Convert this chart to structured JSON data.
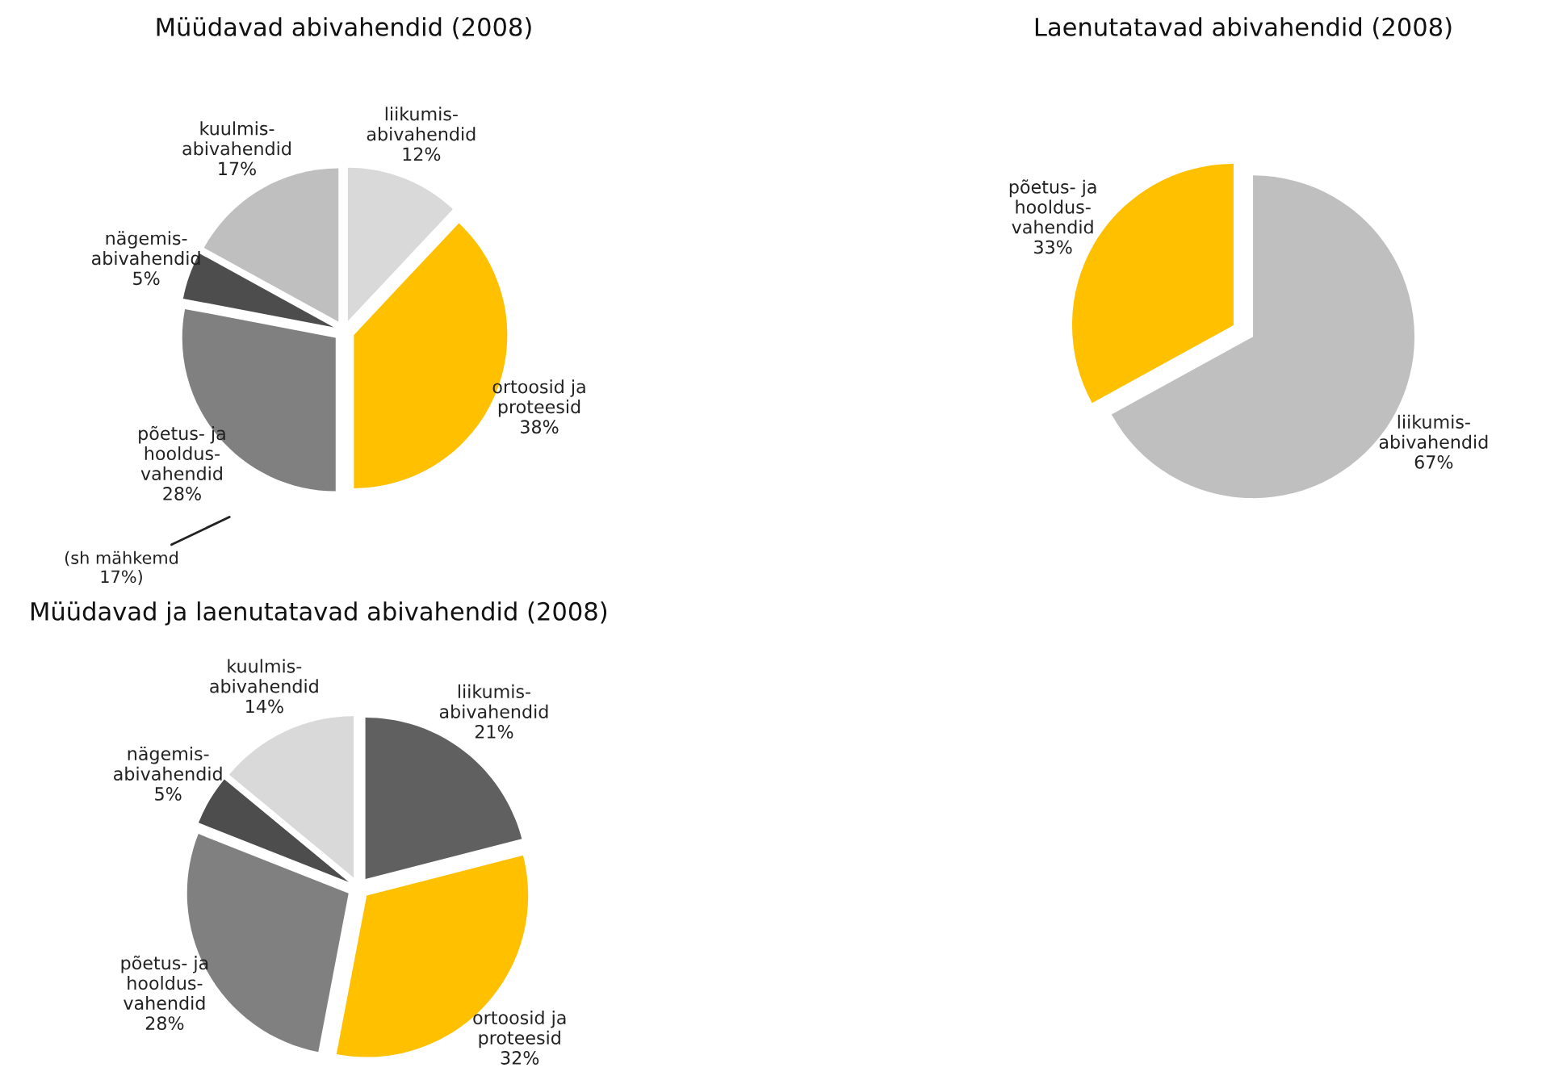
{
  "chart_data": [
    {
      "type": "pie",
      "title": "Müüdavad abivahendid (2008)",
      "categories": [
        "liikumis-\nabivahendid",
        "ortoosid ja\nproteesid",
        "põetus- ja\nhooldus-\nvahendid",
        "nägemis-\nabivahendid",
        "kuulmis-\nabivahendid"
      ],
      "values": [
        12,
        38,
        28,
        5,
        17
      ],
      "value_labels": [
        "12%",
        "38%",
        "28%",
        "5%",
        "17%"
      ],
      "colors": [
        "#d9d9d9",
        "#ffc000",
        "#808080",
        "#4d4d4d",
        "#bfbfbf"
      ],
      "annotations": [
        "(sh mähkemd\n17%)"
      ]
    },
    {
      "type": "pie",
      "title": "Laenutatavad abivahendid (2008)",
      "categories": [
        "liikumis-\nabivahendid",
        "põetus- ja\nhooldus-\nvahendid"
      ],
      "values": [
        67,
        33
      ],
      "value_labels": [
        "67%",
        "33%"
      ],
      "colors": [
        "#bfbfbf",
        "#ffc000"
      ]
    },
    {
      "type": "pie",
      "title": "Müüdavad ja laenutatavad abivahendid (2008)",
      "categories": [
        "liikumis-\nabivahendid",
        "ortoosid ja\nproteesid",
        "põetus- ja\nhooldus-\nvahendid",
        "nägemis-\nabivahendid",
        "kuulmis-\nabivahendid"
      ],
      "values": [
        21,
        32,
        28,
        5,
        14
      ],
      "value_labels": [
        "21%",
        "32%",
        "28%",
        "5%",
        "14%"
      ],
      "colors": [
        "#606060",
        "#ffc000",
        "#808080",
        "#4d4d4d",
        "#d9d9d9"
      ]
    }
  ]
}
